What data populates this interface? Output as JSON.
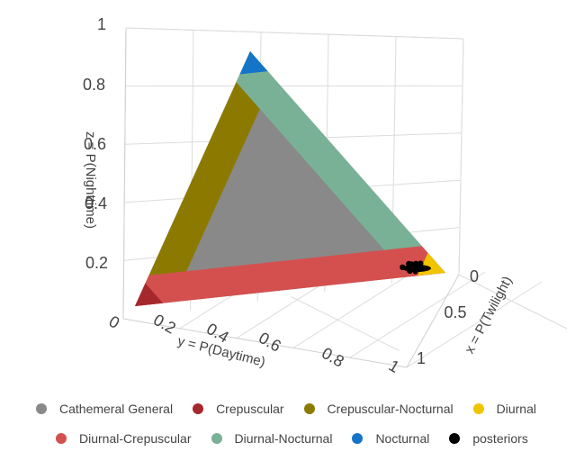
{
  "chart_data": {
    "type": "scatter",
    "subtype": "3d-ternary-simplex",
    "axes": {
      "x": {
        "title": "x = P(Twilight)",
        "ticks": [
          "0",
          "0.5",
          "1"
        ],
        "range": [
          0,
          1
        ]
      },
      "y": {
        "title": "y = P(Daytime)",
        "ticks": [
          "0.2",
          "0.4",
          "0.6",
          "0.8",
          "1"
        ],
        "range": [
          0,
          1
        ]
      },
      "z": {
        "title": "z = P(Nighttime)",
        "ticks": [
          "0",
          "0.2",
          "0.4",
          "0.6",
          "0.8",
          "1"
        ],
        "range": [
          0,
          1
        ]
      },
      "corner_origin_label": "0"
    },
    "grid": true,
    "legend_position": "bottom",
    "series": [
      {
        "name": "Cathemeral General",
        "color": "#898989",
        "region": "interior"
      },
      {
        "name": "Crepuscular",
        "color": "#a5282d",
        "region": "corner-twilight"
      },
      {
        "name": "Crepuscular-Nocturnal",
        "color": "#8c7a00",
        "region": "edge-twilight-night"
      },
      {
        "name": "Diurnal",
        "color": "#f2c300",
        "region": "corner-day"
      },
      {
        "name": "Diurnal-Crepuscular",
        "color": "#d4504f",
        "region": "edge-day-twilight"
      },
      {
        "name": "Diurnal-Nocturnal",
        "color": "#79b197",
        "region": "edge-day-night"
      },
      {
        "name": "Nocturnal",
        "color": "#1474c8",
        "region": "corner-night"
      },
      {
        "name": "posteriors",
        "color": "#000000",
        "region": "near-day-corner",
        "points": [
          {
            "x": 0.04,
            "y": 0.93,
            "z": 0.03
          },
          {
            "x": 0.05,
            "y": 0.91,
            "z": 0.04
          },
          {
            "x": 0.03,
            "y": 0.94,
            "z": 0.03
          },
          {
            "x": 0.06,
            "y": 0.9,
            "z": 0.04
          },
          {
            "x": 0.04,
            "y": 0.92,
            "z": 0.04
          },
          {
            "x": 0.05,
            "y": 0.93,
            "z": 0.02
          },
          {
            "x": 0.07,
            "y": 0.89,
            "z": 0.04
          },
          {
            "x": 0.03,
            "y": 0.92,
            "z": 0.05
          },
          {
            "x": 0.06,
            "y": 0.92,
            "z": 0.02
          },
          {
            "x": 0.05,
            "y": 0.9,
            "z": 0.05
          }
        ]
      }
    ]
  },
  "legend": {
    "row1": [
      "Cathemeral General",
      "Crepuscular",
      "Crepuscular-Nocturnal",
      "Diurnal"
    ],
    "row2": [
      "Diurnal-Crepuscular",
      "Diurnal-Nocturnal",
      "Nocturnal",
      "posteriors"
    ]
  }
}
